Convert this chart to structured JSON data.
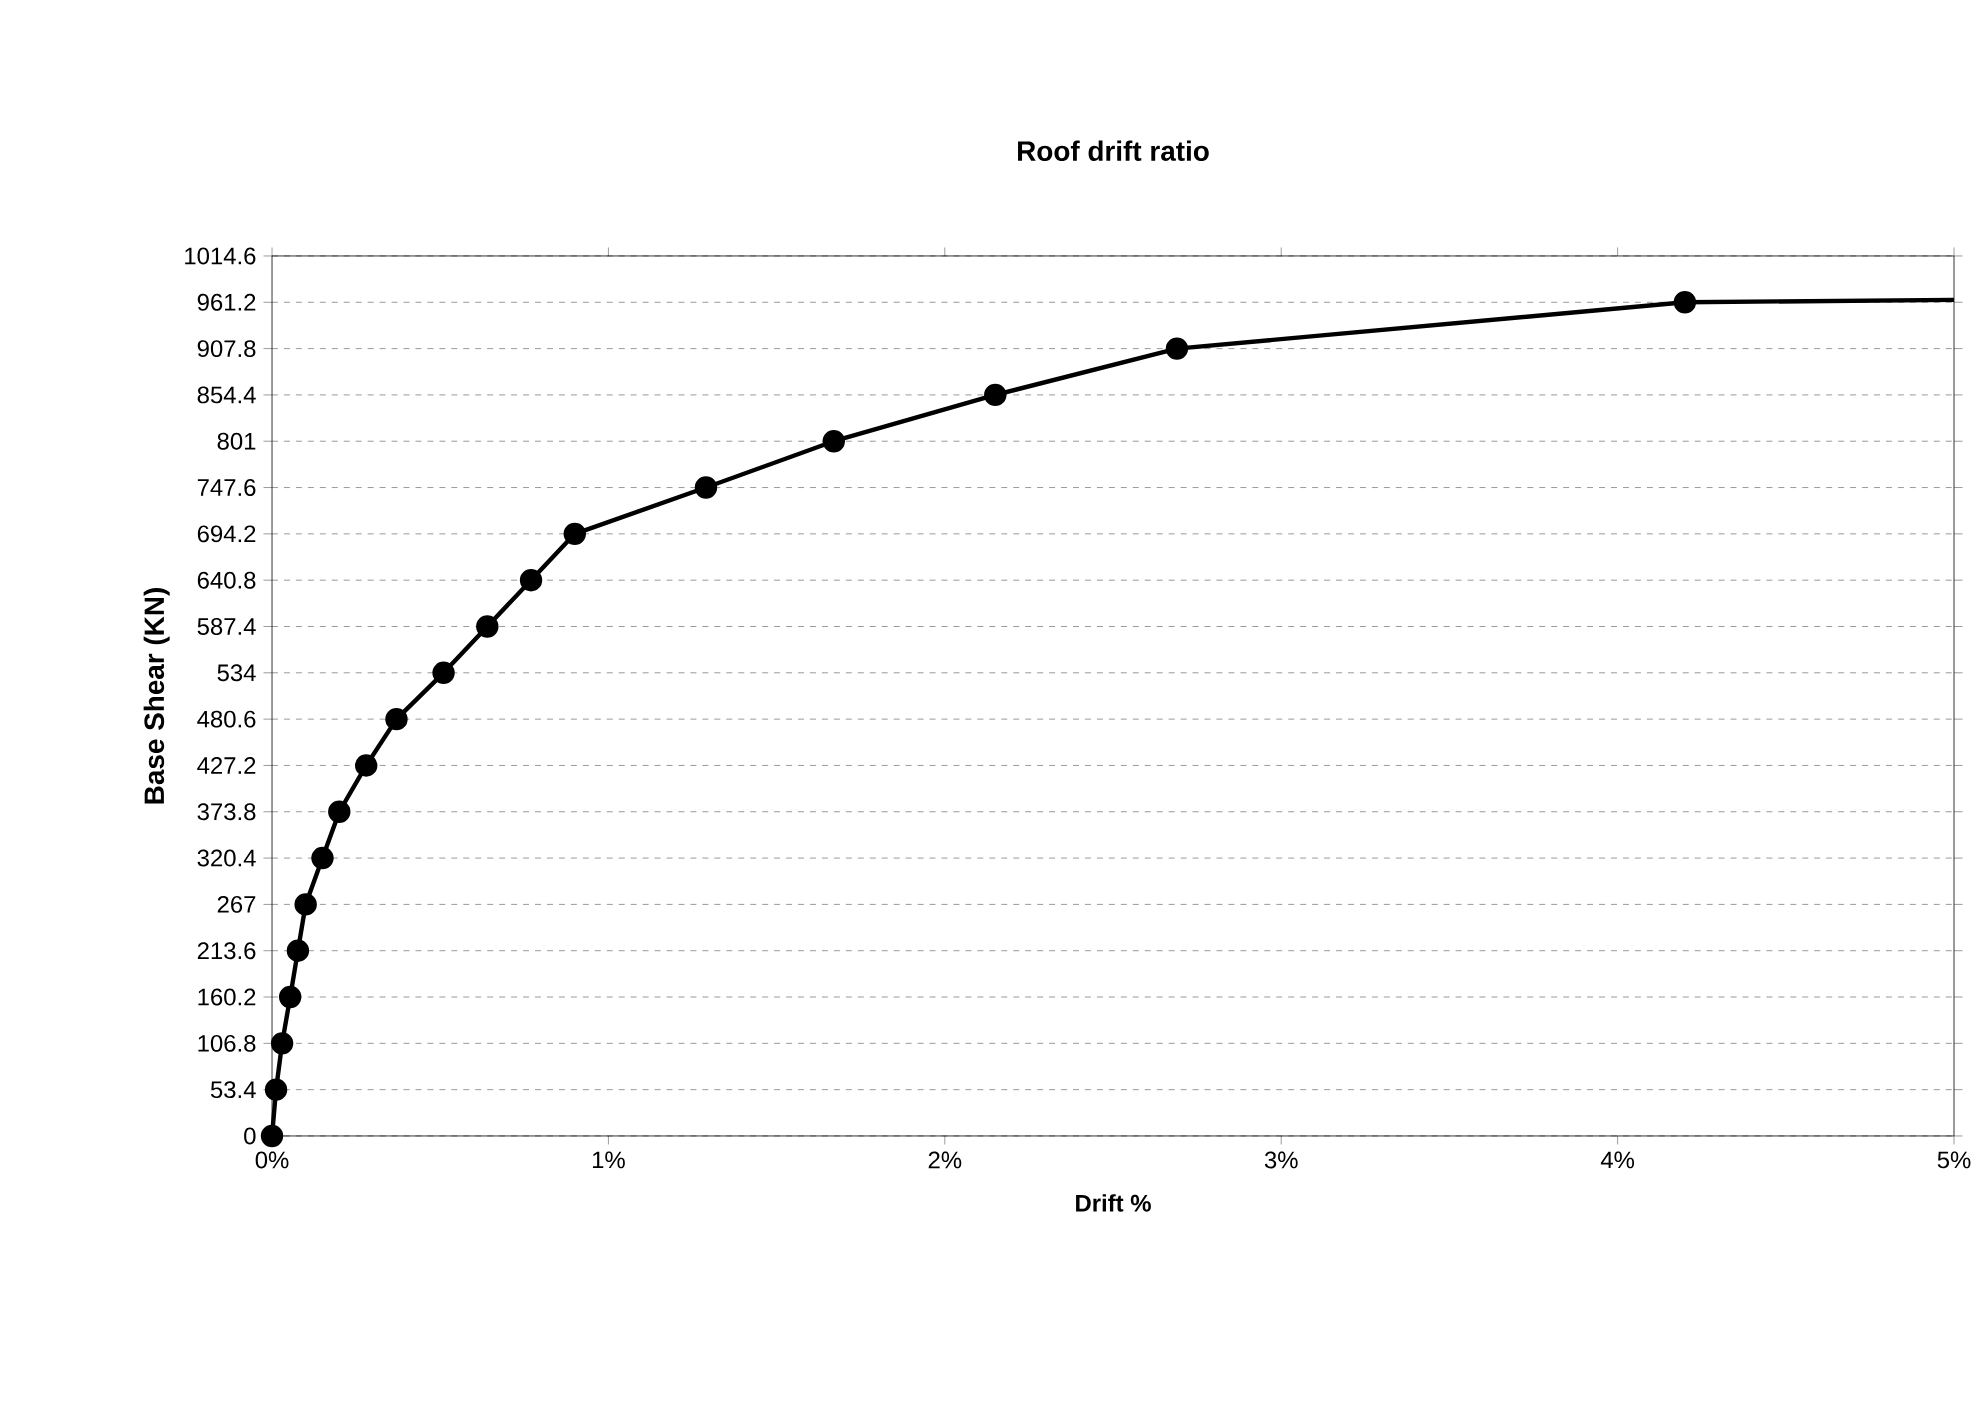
{
  "chart_data": {
    "type": "line",
    "title": "Roof drift ratio",
    "xlabel": "Drift %",
    "ylabel": "Base Shear (KN)",
    "series": [
      {
        "color": "#000000",
        "marker": "circle",
        "x": [
          0,
          0.012,
          0.03,
          0.054,
          0.077,
          0.1,
          0.15,
          0.2,
          0.28,
          0.37,
          0.51,
          0.64,
          0.77,
          0.9,
          1.29,
          1.67,
          2.15,
          2.69,
          4.2
        ],
        "values": [
          0,
          53.4,
          106.8,
          160.2,
          213.6,
          267,
          320.4,
          373.8,
          427.2,
          480.6,
          534,
          587.4,
          640.8,
          694.2,
          747.6,
          801,
          854.4,
          907.8,
          961.2
        ]
      },
      {
        "color": "#000000",
        "marker": "none",
        "x": [
          4.2,
          5.0
        ],
        "values": [
          961.2,
          964
        ]
      }
    ],
    "xlim": [
      0,
      5
    ],
    "ylim": [
      0,
      1014.6
    ],
    "xticks": [
      {
        "value": 0,
        "label": "0%"
      },
      {
        "value": 1,
        "label": "1%"
      },
      {
        "value": 2,
        "label": "2%"
      },
      {
        "value": 3,
        "label": "3%"
      },
      {
        "value": 4,
        "label": "4%"
      },
      {
        "value": 5,
        "label": "5%"
      }
    ],
    "yticks": [
      0,
      53.4,
      106.8,
      160.2,
      213.6,
      267,
      320.4,
      373.8,
      427.2,
      480.6,
      534,
      587.4,
      640.8,
      694.2,
      747.6,
      801,
      854.4,
      907.8,
      961.2,
      1014.6
    ],
    "grid": "y",
    "line_style": "solid"
  }
}
